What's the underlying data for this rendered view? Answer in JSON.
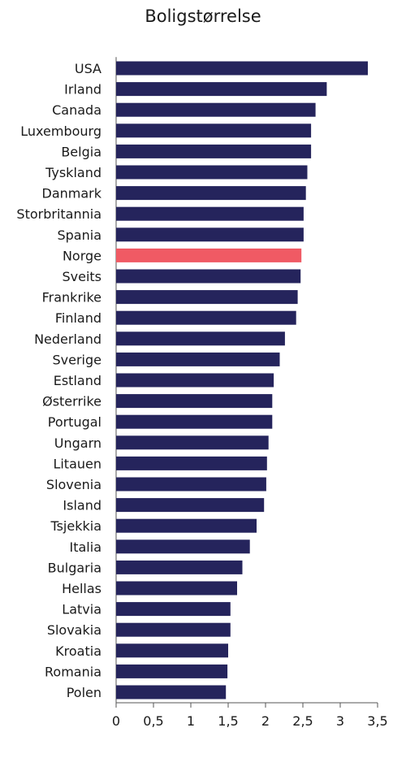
{
  "chart_data": {
    "type": "bar",
    "orientation": "horizontal",
    "title": "Boligstørrelse",
    "xlabel": "",
    "ylabel": "",
    "xlim": [
      0,
      3.5
    ],
    "x_ticks": [
      0,
      0.5,
      1,
      1.5,
      2,
      2.5,
      3,
      3.5
    ],
    "x_tick_labels": [
      "0",
      "0,5",
      "1",
      "1,5",
      "2",
      "2,5",
      "3",
      "3,5"
    ],
    "grid": false,
    "bar_color": "#25245c",
    "highlight_color": "#f05a64",
    "highlight_category": "Norge",
    "categories": [
      "USA",
      "Irland",
      "Canada",
      "Luxembourg",
      "Belgia",
      "Tyskland",
      "Danmark",
      "Storbritannia",
      "Spania",
      "Norge",
      "Sveits",
      "Frankrike",
      "Finland",
      "Nederland",
      "Sverige",
      "Estland",
      "Østerrike",
      "Portugal",
      "Ungarn",
      "Litauen",
      "Slovenia",
      "Island",
      "Tsjekkia",
      "Italia",
      "Bulgaria",
      "Hellas",
      "Latvia",
      "Slovakia",
      "Kroatia",
      "Romania",
      "Polen"
    ],
    "values": [
      3.37,
      2.82,
      2.67,
      2.61,
      2.61,
      2.56,
      2.54,
      2.51,
      2.51,
      2.48,
      2.47,
      2.43,
      2.41,
      2.26,
      2.19,
      2.11,
      2.09,
      2.09,
      2.04,
      2.02,
      2.01,
      1.98,
      1.88,
      1.79,
      1.69,
      1.62,
      1.53,
      1.53,
      1.5,
      1.49,
      1.47
    ]
  }
}
